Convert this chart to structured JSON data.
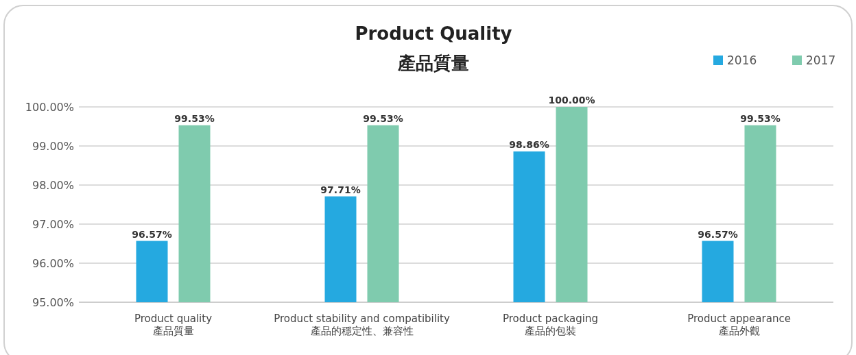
{
  "chart_data": {
    "type": "bar",
    "title": "Product Quality",
    "subtitle": "產品質量",
    "categories": [
      "Product quality\n產品質量",
      "Product stability and compatibility\n產品的穩定性、兼容性",
      "Product packaging\n產品的包裝",
      "Product appearance\n產品外觀"
    ],
    "series": [
      {
        "name": "2016",
        "color": "#25a9e0",
        "values": [
          96.57,
          97.71,
          98.86,
          96.57
        ],
        "value_labels": [
          "96.57%",
          "97.71%",
          "98.86%",
          "96.57%"
        ]
      },
      {
        "name": "2017",
        "color": "#7fcbae",
        "values": [
          99.53,
          99.53,
          100.0,
          99.53
        ],
        "value_labels": [
          "99.53%",
          "99.53%",
          "100.00%",
          "99.53%"
        ]
      }
    ],
    "ylim": [
      95,
      100
    ],
    "yticks": [
      {
        "value": 95,
        "label": "95.00%"
      },
      {
        "value": 96,
        "label": "96.00%"
      },
      {
        "value": 97,
        "label": "97.00%"
      },
      {
        "value": 98,
        "label": "98.00%"
      },
      {
        "value": 99,
        "label": "99.00%"
      },
      {
        "value": 100,
        "label": "100.00%"
      }
    ],
    "grid": "y",
    "legend": "top right"
  }
}
